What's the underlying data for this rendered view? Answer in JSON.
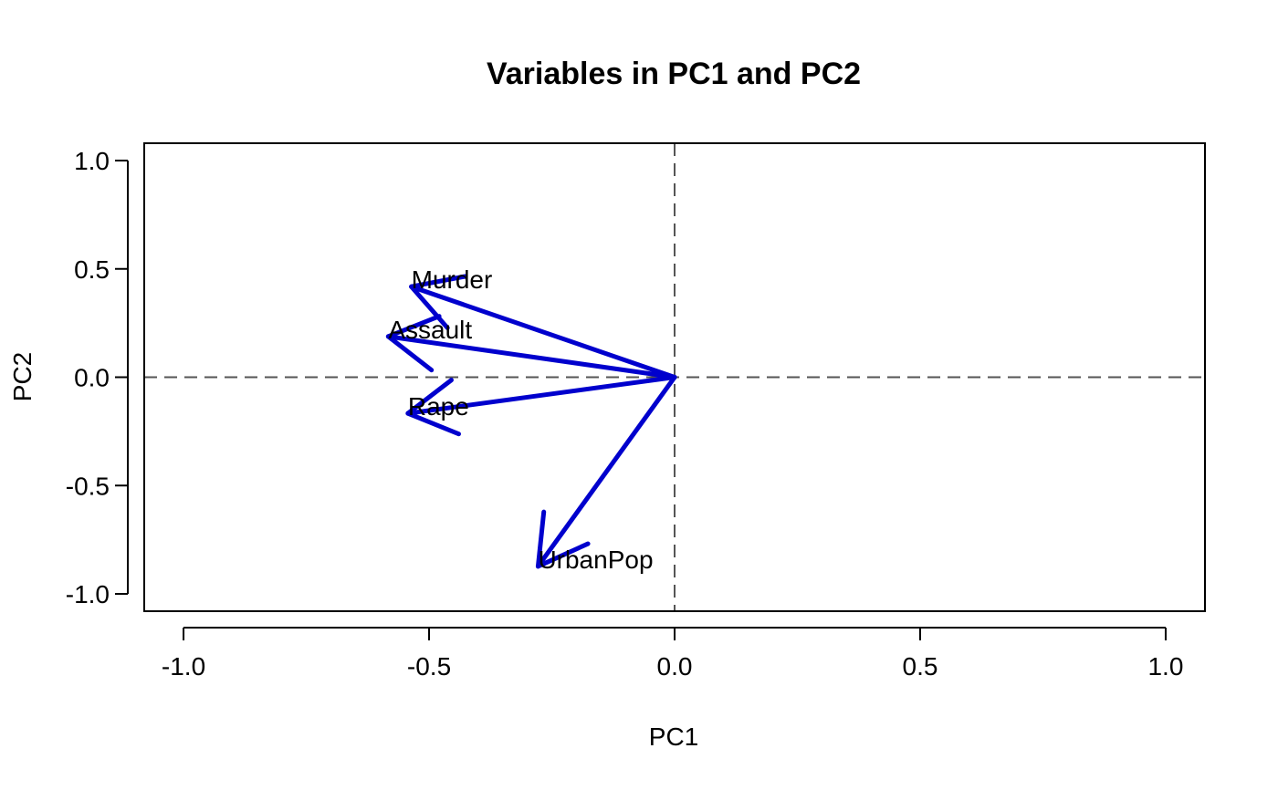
{
  "chart_data": {
    "type": "scatter",
    "title": "Variables in PC1 and PC2",
    "xlabel": "PC1",
    "ylabel": "PC2",
    "xlim": [
      -1.08,
      1.08
    ],
    "ylim": [
      -1.08,
      1.08
    ],
    "xticks": [
      "-1.0",
      "-0.5",
      "0.0",
      "0.5",
      "1.0"
    ],
    "yticks": [
      "-1.0",
      "-0.5",
      "0.0",
      "0.5",
      "1.0"
    ],
    "reference_lines": {
      "x": 0,
      "y": 0,
      "style": "dashed"
    },
    "grid": false,
    "legend": "none",
    "arrow_color": "#0000CD",
    "reference_line_color": "#555555",
    "variables": [
      {
        "name": "Murder",
        "x": -0.536,
        "y": 0.418
      },
      {
        "name": "Assault",
        "x": -0.583,
        "y": 0.188
      },
      {
        "name": "Rape",
        "x": -0.543,
        "y": -0.167
      },
      {
        "name": "UrbanPop",
        "x": -0.278,
        "y": -0.873
      }
    ]
  }
}
